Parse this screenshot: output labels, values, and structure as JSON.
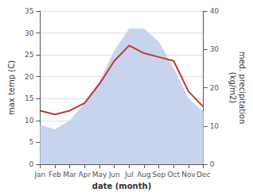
{
  "chart_data": {
    "type": "line",
    "xlabel": "date (month)",
    "ylabel": "max temp (C)",
    "y2label": "med. precipitation\n(kg/m2)",
    "categories": [
      "Jan",
      "Feb",
      "Mar",
      "Apr",
      "May",
      "Jun",
      "Jul",
      "Aug",
      "Sep",
      "Oct",
      "Nov",
      "Dec"
    ],
    "series": [
      {
        "type": "area",
        "color": "#c8d4ee",
        "values": [
          9,
          8,
          10,
          14,
          19,
          26,
          31,
          31,
          28,
          22,
          15,
          12
        ]
      },
      {
        "type": "line",
        "color": "#c0392b",
        "axis": "y2",
        "values": [
          14,
          13,
          14,
          16,
          21,
          27,
          31,
          29,
          28,
          27,
          19,
          15
        ]
      }
    ],
    "ylim": [
      0,
      35
    ],
    "yticks": [
      0,
      5,
      10,
      15,
      20,
      25,
      30,
      35
    ],
    "y2lim": [
      0,
      40
    ],
    "y2ticks": [
      0,
      10,
      20,
      30,
      40
    ],
    "grid": true
  }
}
